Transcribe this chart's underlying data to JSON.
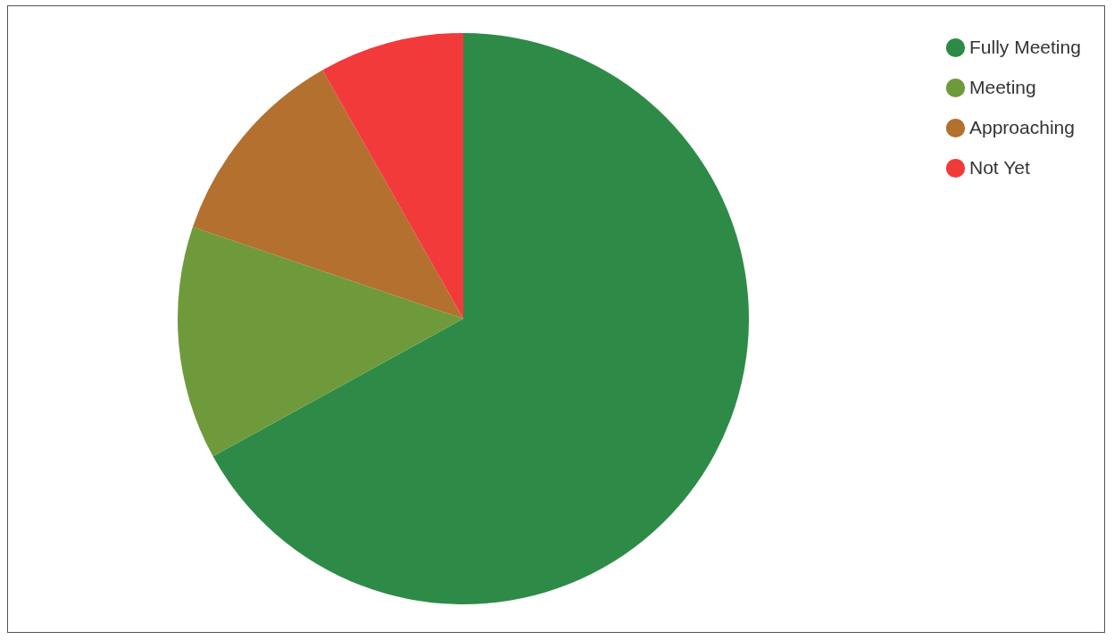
{
  "chart_data": {
    "type": "pie",
    "categories": [
      "Fully Meeting",
      "Meeting",
      "Approaching",
      "Not Yet"
    ],
    "values": [
      67,
      13.2,
      11.6,
      8.2
    ],
    "colors": [
      "#2e8b47",
      "#6f9a3c",
      "#b3702f",
      "#f23a3a"
    ],
    "legend": "top right"
  }
}
